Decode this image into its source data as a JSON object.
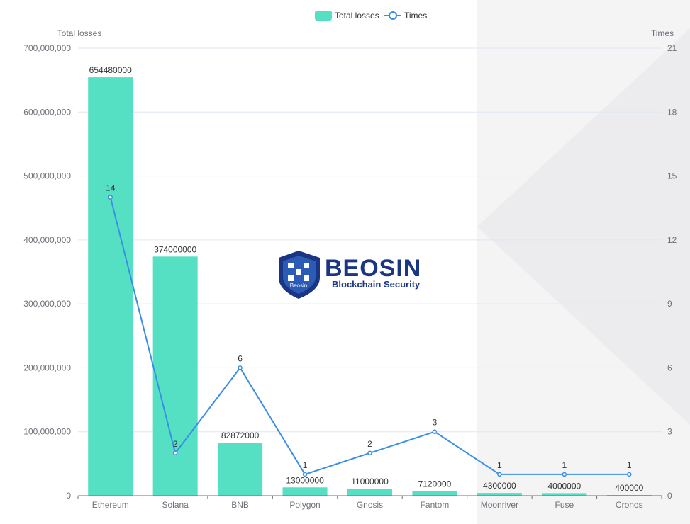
{
  "chart_data": {
    "type": "bar",
    "categories": [
      "Ethereum",
      "Solana",
      "BNB",
      "Polygon",
      "Gnosis",
      "Fantom",
      "Moonriver",
      "Fuse",
      "Cronos"
    ],
    "series": [
      {
        "name": "Total losses",
        "type": "bar",
        "axis": "left",
        "values": [
          654480000,
          374000000,
          82872000,
          13000000,
          11000000,
          7120000,
          4300000,
          4000000,
          400000
        ]
      },
      {
        "name": "Times",
        "type": "line",
        "axis": "right",
        "values": [
          14,
          2,
          6,
          1,
          2,
          3,
          1,
          1,
          1
        ]
      }
    ],
    "left_axis": {
      "title": "Total losses",
      "range": [
        0,
        700000000
      ],
      "ticks": [
        "0",
        "100,000,000",
        "200,000,000",
        "300,000,000",
        "400,000,000",
        "500,000,000",
        "600,000,000",
        "700,000,000"
      ]
    },
    "right_axis": {
      "title": "Times",
      "range": [
        0,
        21
      ],
      "ticks": [
        "0",
        "3",
        "6",
        "9",
        "12",
        "15",
        "18",
        "21"
      ]
    },
    "grid": true,
    "legend": "top-center",
    "colors": {
      "bar": "#55dfc3",
      "line": "#3a8ee6",
      "grid": "#e0e6f1"
    }
  },
  "watermark": {
    "brand": "BEOSIN",
    "tagline": "Blockchain Security",
    "shield_text": "Beosin"
  }
}
